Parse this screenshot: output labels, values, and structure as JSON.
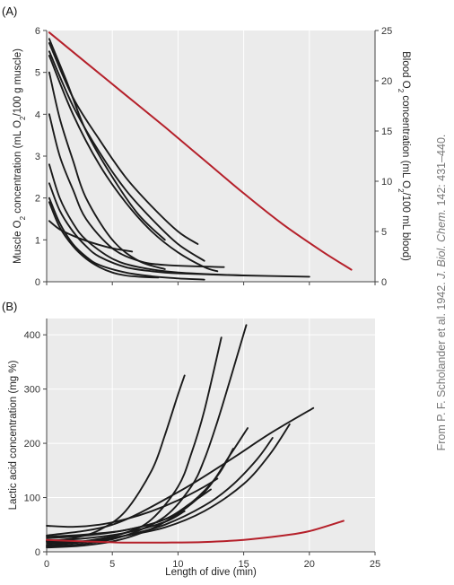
{
  "figure": {
    "credit": {
      "prefix": "From P. F. Scholander et al. 1942. ",
      "journal": "J. Biol. Chem.",
      "suffix": " 142: 431–440."
    }
  },
  "colors": {
    "panel_bg": "#ebebeb",
    "grid": "#ffffff",
    "black_series": "#1a1a1a",
    "red_series": "#b5202a"
  },
  "chart_data": [
    {
      "panel_label": "(A)",
      "type": "line",
      "xlabel": "",
      "ylabel_left_parts": [
        "Muscle O",
        "2",
        " concentration (mL O",
        "2",
        "/100 g muscle)"
      ],
      "ylabel_right_parts": [
        "Blood O",
        "2",
        " concentration (mL O",
        "2",
        "/100 mL blood)"
      ],
      "xlim": [
        0,
        25
      ],
      "ylim_left": [
        0,
        6
      ],
      "ylim_right": [
        0,
        25
      ],
      "x_ticks": [
        0,
        5,
        10,
        15,
        20,
        25
      ],
      "y_ticks_left": [
        0,
        1,
        2,
        3,
        4,
        5,
        6
      ],
      "y_ticks_right": [
        0,
        5,
        10,
        15,
        20,
        25
      ],
      "grid": true,
      "series": [
        {
          "color": "black",
          "axis": "left",
          "x": [
            0.2,
            1.5,
            3,
            5,
            7,
            9
          ],
          "y": [
            5.8,
            4.8,
            3.6,
            2.5,
            1.6,
            1.0
          ]
        },
        {
          "color": "black",
          "axis": "left",
          "x": [
            0.2,
            2,
            4,
            6,
            8,
            10,
            11.5
          ],
          "y": [
            5.7,
            4.4,
            3.4,
            2.5,
            1.8,
            1.2,
            0.9
          ]
        },
        {
          "color": "black",
          "axis": "left",
          "x": [
            0.2,
            2,
            4,
            6,
            8,
            10,
            12
          ],
          "y": [
            5.5,
            4.2,
            3.1,
            2.2,
            1.5,
            0.9,
            0.5
          ]
        },
        {
          "color": "black",
          "axis": "left",
          "x": [
            0.2,
            2,
            4,
            6,
            8,
            10,
            12,
            13
          ],
          "y": [
            5.4,
            4.0,
            2.8,
            1.9,
            1.2,
            0.7,
            0.35,
            0.25
          ]
        },
        {
          "color": "black",
          "axis": "left",
          "x": [
            0.2,
            1,
            2,
            3,
            5,
            7,
            9
          ],
          "y": [
            5.0,
            3.9,
            2.9,
            2.0,
            1.0,
            0.5,
            0.3
          ]
        },
        {
          "color": "black",
          "axis": "left",
          "x": [
            0.2,
            1,
            2,
            3,
            5,
            7,
            9,
            13.5
          ],
          "y": [
            4.0,
            3.0,
            2.2,
            1.5,
            0.8,
            0.5,
            0.4,
            0.35
          ]
        },
        {
          "color": "black",
          "axis": "left",
          "x": [
            0.2,
            1,
            2,
            3,
            5,
            7,
            10,
            15
          ],
          "y": [
            2.8,
            2.0,
            1.4,
            1.0,
            0.55,
            0.35,
            0.22,
            0.15
          ]
        },
        {
          "color": "black",
          "axis": "left",
          "x": [
            0.2,
            1,
            2,
            3,
            4,
            6,
            8,
            10,
            15,
            20
          ],
          "y": [
            2.35,
            1.7,
            1.2,
            0.85,
            0.6,
            0.35,
            0.25,
            0.2,
            0.15,
            0.12
          ]
        },
        {
          "color": "black",
          "axis": "left",
          "x": [
            0.2,
            1,
            2,
            3,
            4,
            6,
            8,
            10,
            12
          ],
          "y": [
            2.0,
            1.4,
            0.9,
            0.6,
            0.4,
            0.22,
            0.13,
            0.08,
            0.05
          ]
        },
        {
          "color": "black",
          "axis": "left",
          "x": [
            0.2,
            1,
            2,
            3,
            4,
            5,
            6,
            7,
            8.5
          ],
          "y": [
            1.9,
            1.3,
            0.85,
            0.55,
            0.35,
            0.22,
            0.15,
            0.12,
            0.1
          ]
        },
        {
          "color": "black",
          "axis": "left",
          "x": [
            0.2,
            1,
            2,
            3,
            4,
            5,
            6.5
          ],
          "y": [
            1.45,
            1.25,
            1.1,
            0.98,
            0.88,
            0.8,
            0.72
          ]
        },
        {
          "color": "red",
          "axis": "right",
          "x": [
            0.2,
            3,
            6,
            9,
            12,
            15,
            18,
            21,
            23.2
          ],
          "y": [
            24.8,
            21.8,
            18.6,
            15.4,
            12.1,
            8.8,
            5.7,
            3.0,
            1.2
          ]
        }
      ]
    },
    {
      "panel_label": "(B)",
      "type": "line",
      "xlabel": "Length of dive (min)",
      "ylabel": "Lactic acid concentration (mg %)",
      "xlim": [
        0,
        25
      ],
      "ylim": [
        0,
        430
      ],
      "x_ticks": [
        0,
        5,
        10,
        15,
        20,
        25
      ],
      "y_ticks": [
        0,
        100,
        200,
        300,
        400
      ],
      "grid": true,
      "series": [
        {
          "color": "black",
          "x": [
            0,
            2,
            4,
            6,
            8,
            9,
            10,
            10.5
          ],
          "y": [
            20,
            25,
            40,
            75,
            150,
            215,
            290,
            325
          ]
        },
        {
          "color": "black",
          "x": [
            0,
            3,
            6,
            8,
            10,
            11,
            12,
            13.3
          ],
          "y": [
            15,
            20,
            35,
            60,
            120,
            180,
            260,
            395
          ]
        },
        {
          "color": "black",
          "x": [
            0,
            3,
            6,
            9,
            11,
            12,
            13,
            14,
            15.2
          ],
          "y": [
            10,
            15,
            30,
            65,
            120,
            170,
            240,
            320,
            418
          ]
        },
        {
          "color": "black",
          "x": [
            0,
            3,
            6,
            9,
            12,
            14,
            15.3
          ],
          "y": [
            8,
            12,
            25,
            55,
            110,
            180,
            228
          ]
        },
        {
          "color": "black",
          "x": [
            0,
            3,
            6,
            9,
            12,
            14,
            16,
            17.2
          ],
          "y": [
            12,
            18,
            30,
            50,
            85,
            120,
            170,
            210
          ]
        },
        {
          "color": "black",
          "x": [
            0,
            3,
            6,
            9,
            12,
            15,
            17,
            18.5
          ],
          "y": [
            18,
            20,
            30,
            45,
            75,
            125,
            180,
            235
          ]
        },
        {
          "color": "black",
          "x": [
            0,
            3,
            6,
            9,
            11,
            13,
            14.2
          ],
          "y": [
            25,
            30,
            40,
            60,
            90,
            140,
            190
          ]
        },
        {
          "color": "black",
          "x": [
            0,
            3,
            6,
            9,
            11,
            12.5
          ],
          "y": [
            28,
            32,
            40,
            60,
            90,
            115
          ]
        },
        {
          "color": "black",
          "x": [
            0,
            3,
            6,
            9,
            10.5
          ],
          "y": [
            20,
            25,
            35,
            55,
            75
          ]
        },
        {
          "color": "black",
          "x": [
            0,
            2,
            4,
            6,
            8,
            10,
            12,
            13
          ],
          "y": [
            48,
            46,
            50,
            60,
            75,
            95,
            120,
            135
          ]
        },
        {
          "color": "black",
          "x": [
            0,
            5,
            10,
            14,
            17,
            20.3
          ],
          "y": [
            30,
            50,
            110,
            170,
            218,
            265
          ]
        },
        {
          "color": "red",
          "x": [
            0,
            3,
            6,
            9,
            12,
            15,
            18,
            20,
            22.6
          ],
          "y": [
            22,
            19,
            17,
            17,
            18,
            22,
            30,
            38,
            57
          ]
        }
      ]
    }
  ]
}
